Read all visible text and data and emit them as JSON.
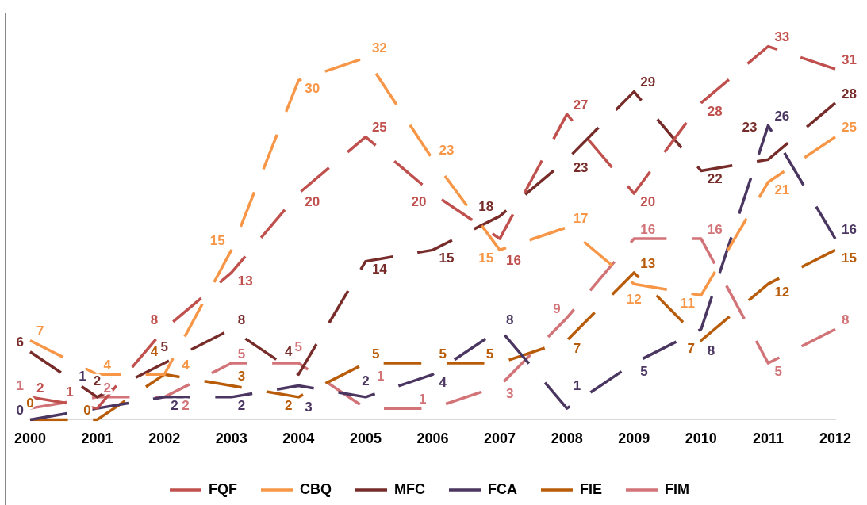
{
  "chart_data": {
    "type": "line",
    "categories": [
      "2000",
      "2001",
      "2002",
      "2003",
      "2004",
      "2005",
      "2006",
      "2007",
      "2008",
      "2009",
      "2010",
      "2011",
      "2012"
    ],
    "series": [
      {
        "name": "FQF",
        "color": "#c0504d",
        "values": [
          2,
          1,
          8,
          13,
          20,
          25,
          20,
          16,
          27,
          20,
          28,
          33,
          31
        ]
      },
      {
        "name": "CBQ",
        "color": "#f79646",
        "values": [
          7,
          4,
          4,
          15,
          30,
          32,
          23,
          15,
          17,
          12,
          11,
          21,
          25
        ]
      },
      {
        "name": "MFC",
        "color": "#772c2a",
        "values": [
          6,
          2,
          5,
          8,
          4,
          14,
          15,
          18,
          23,
          29,
          22,
          23,
          28
        ]
      },
      {
        "name": "FCA",
        "color": "#4a3660",
        "values": [
          0,
          1,
          2,
          2,
          3,
          2,
          4,
          8,
          1,
          5,
          8,
          26,
          16
        ]
      },
      {
        "name": "FIE",
        "color": "#b85c0a",
        "values": [
          0,
          0,
          4,
          3,
          2,
          5,
          5,
          5,
          7,
          13,
          7,
          12,
          15
        ]
      },
      {
        "name": "FIM",
        "color": "#d27378",
        "values": [
          1,
          2,
          2,
          5,
          5,
          1,
          1,
          3,
          9,
          16,
          16,
          5,
          8
        ]
      }
    ],
    "tick_labels": "x",
    "grid": false,
    "legend": "bottom",
    "line_style": "dashed",
    "marker": "none",
    "data_labels": true
  }
}
